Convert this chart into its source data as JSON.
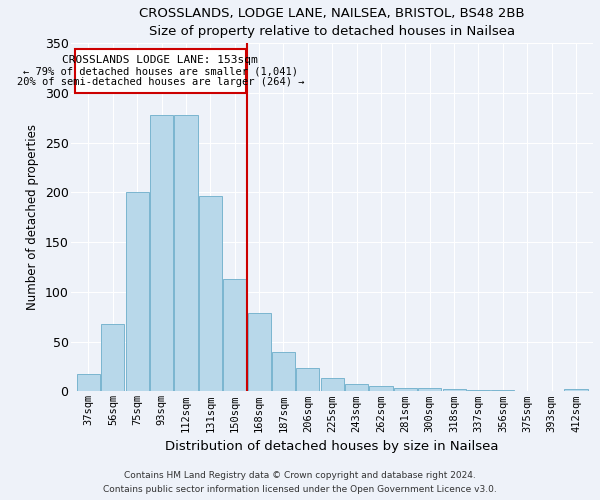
{
  "title": "CROSSLANDS, LODGE LANE, NAILSEA, BRISTOL, BS48 2BB",
  "subtitle": "Size of property relative to detached houses in Nailsea",
  "xlabel": "Distribution of detached houses by size in Nailsea",
  "ylabel": "Number of detached properties",
  "bar_labels": [
    "37sqm",
    "56sqm",
    "75sqm",
    "93sqm",
    "112sqm",
    "131sqm",
    "150sqm",
    "168sqm",
    "187sqm",
    "206sqm",
    "225sqm",
    "243sqm",
    "262sqm",
    "281sqm",
    "300sqm",
    "318sqm",
    "337sqm",
    "356sqm",
    "375sqm",
    "393sqm",
    "412sqm"
  ],
  "bar_values": [
    18,
    68,
    200,
    278,
    278,
    196,
    113,
    79,
    40,
    24,
    14,
    7,
    5,
    3,
    3,
    2,
    1,
    1,
    0,
    0,
    2
  ],
  "bar_color": "#b8d8ea",
  "bar_edge_color": "#7ab5cf",
  "vline_x_index": 6.5,
  "property_line_label": "CROSSLANDS LODGE LANE: 153sqm",
  "annotation_line1": "← 79% of detached houses are smaller (1,041)",
  "annotation_line2": "20% of semi-detached houses are larger (264) →",
  "annotation_box_color": "#ffffff",
  "annotation_box_edge_color": "#cc0000",
  "vline_color": "#cc0000",
  "ylim": [
    0,
    350
  ],
  "yticks": [
    0,
    50,
    100,
    150,
    200,
    250,
    300,
    350
  ],
  "footer1": "Contains HM Land Registry data © Crown copyright and database right 2024.",
  "footer2": "Contains public sector information licensed under the Open Government Licence v3.0.",
  "bg_color": "#eef2f9"
}
